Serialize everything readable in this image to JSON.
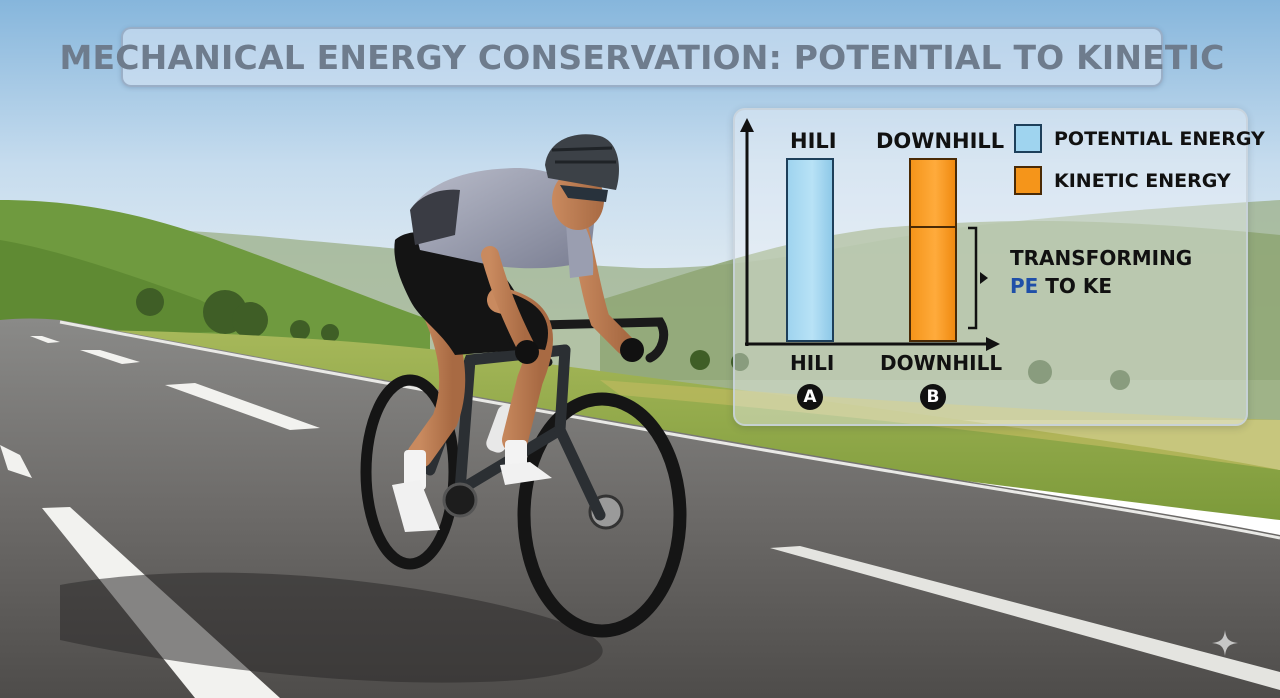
{
  "title": "MECHANICAL ENERGY CONSERVATION: POTENTIAL TO KINETIC",
  "diagram": {
    "top_labels": [
      "HILI",
      "DOWNHILL"
    ],
    "bottom_labels": [
      "HILI",
      "DOWNHILL"
    ],
    "badges": [
      "A",
      "B"
    ],
    "legend": [
      {
        "label": "POTENTIAL ENERGY",
        "color": "#9fd4ef"
      },
      {
        "label": "KINETIC ENERGY",
        "color": "#f5951a"
      }
    ],
    "annotation": {
      "line1": "TRANSFORMING",
      "line2_a": "PE",
      "line2_b": " TO KE"
    }
  },
  "colors": {
    "pe": "#9fd4ef",
    "ke": "#f5951a",
    "accent_text": "#1f4fa8"
  }
}
